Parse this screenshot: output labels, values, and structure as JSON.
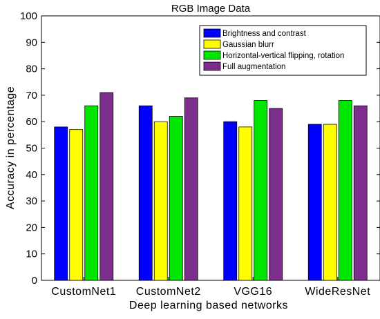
{
  "chart_data": {
    "type": "bar",
    "title": "RGB Image Data",
    "xlabel": "Deep learning based networks",
    "ylabel": "Accuracy in percentage",
    "ylim": [
      0,
      100
    ],
    "yticks": [
      0,
      10,
      20,
      30,
      40,
      50,
      60,
      70,
      80,
      90,
      100
    ],
    "categories": [
      "CustomNet1",
      "CustomNet2",
      "VGG16",
      "WideResNet"
    ],
    "series": [
      {
        "name": "Brightness and contrast",
        "color": "#0000ff",
        "values": [
          58,
          66,
          60,
          59
        ]
      },
      {
        "name": "Gaussian blurr",
        "color": "#ffff00",
        "values": [
          57,
          60,
          58,
          59
        ]
      },
      {
        "name": "Horizontal-vertical flipping, rotation",
        "color": "#00e600",
        "values": [
          66,
          62,
          68,
          68
        ]
      },
      {
        "name": "Full augmentation",
        "color": "#7d2e8c",
        "values": [
          71,
          69,
          65,
          66
        ]
      }
    ],
    "grid": false,
    "legend_position": "top-right"
  }
}
